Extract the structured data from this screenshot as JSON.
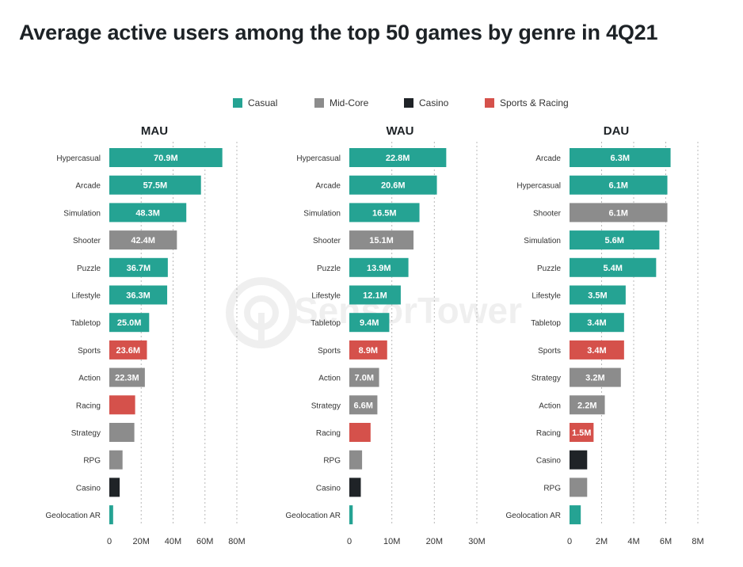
{
  "title": "Average active users among the top 50 games by genre in 4Q21",
  "colors": {
    "Casual": "#25a393",
    "Mid-Core": "#8c8c8c",
    "Casino": "#1f2327",
    "Sports & Racing": "#d5514b"
  },
  "legend": [
    "Casual",
    "Mid-Core",
    "Casino",
    "Sports & Racing"
  ],
  "watermark": "SensorTower",
  "chart_data": [
    {
      "type": "bar",
      "orientation": "horizontal",
      "title": "MAU",
      "xlim": [
        0,
        80
      ],
      "ticks": [
        0,
        20,
        40,
        60,
        80
      ],
      "tick_labels": [
        "0",
        "20M",
        "40M",
        "60M",
        "80M"
      ],
      "grid": true,
      "bars": [
        {
          "category": "Hypercasual",
          "value": 70.9,
          "group": "Casual",
          "label": "70.9M"
        },
        {
          "category": "Arcade",
          "value": 57.5,
          "group": "Casual",
          "label": "57.5M"
        },
        {
          "category": "Simulation",
          "value": 48.3,
          "group": "Casual",
          "label": "48.3M"
        },
        {
          "category": "Shooter",
          "value": 42.4,
          "group": "Mid-Core",
          "label": "42.4M"
        },
        {
          "category": "Puzzle",
          "value": 36.7,
          "group": "Casual",
          "label": "36.7M"
        },
        {
          "category": "Lifestyle",
          "value": 36.3,
          "group": "Casual",
          "label": "36.3M"
        },
        {
          "category": "Tabletop",
          "value": 25.0,
          "group": "Casual",
          "label": "25.0M"
        },
        {
          "category": "Sports",
          "value": 23.6,
          "group": "Sports & Racing",
          "label": "23.6M"
        },
        {
          "category": "Action",
          "value": 22.3,
          "group": "Mid-Core",
          "label": "22.3M"
        },
        {
          "category": "Racing",
          "value": 16.2,
          "group": "Sports & Racing",
          "label": ""
        },
        {
          "category": "Strategy",
          "value": 15.7,
          "group": "Mid-Core",
          "label": ""
        },
        {
          "category": "RPG",
          "value": 8.3,
          "group": "Mid-Core",
          "label": ""
        },
        {
          "category": "Casino",
          "value": 6.5,
          "group": "Casino",
          "label": ""
        },
        {
          "category": "Geolocation AR",
          "value": 2.4,
          "group": "Casual",
          "label": ""
        }
      ]
    },
    {
      "type": "bar",
      "orientation": "horizontal",
      "title": "WAU",
      "xlim": [
        0,
        30
      ],
      "ticks": [
        0,
        10,
        20,
        30
      ],
      "tick_labels": [
        "0",
        "10M",
        "20M",
        "30M"
      ],
      "grid": true,
      "bars": [
        {
          "category": "Hypercasual",
          "value": 22.8,
          "group": "Casual",
          "label": "22.8M"
        },
        {
          "category": "Arcade",
          "value": 20.6,
          "group": "Casual",
          "label": "20.6M"
        },
        {
          "category": "Simulation",
          "value": 16.5,
          "group": "Casual",
          "label": "16.5M"
        },
        {
          "category": "Shooter",
          "value": 15.1,
          "group": "Mid-Core",
          "label": "15.1M"
        },
        {
          "category": "Puzzle",
          "value": 13.9,
          "group": "Casual",
          "label": "13.9M"
        },
        {
          "category": "Lifestyle",
          "value": 12.1,
          "group": "Casual",
          "label": "12.1M"
        },
        {
          "category": "Tabletop",
          "value": 9.4,
          "group": "Casual",
          "label": "9.4M"
        },
        {
          "category": "Sports",
          "value": 8.9,
          "group": "Sports & Racing",
          "label": "8.9M"
        },
        {
          "category": "Action",
          "value": 7.0,
          "group": "Mid-Core",
          "label": "7.0M"
        },
        {
          "category": "Strategy",
          "value": 6.6,
          "group": "Mid-Core",
          "label": "6.6M"
        },
        {
          "category": "Racing",
          "value": 5.0,
          "group": "Sports & Racing",
          "label": ""
        },
        {
          "category": "RPG",
          "value": 3.0,
          "group": "Mid-Core",
          "label": ""
        },
        {
          "category": "Casino",
          "value": 2.7,
          "group": "Casino",
          "label": ""
        },
        {
          "category": "Geolocation AR",
          "value": 0.8,
          "group": "Casual",
          "label": ""
        }
      ]
    },
    {
      "type": "bar",
      "orientation": "horizontal",
      "title": "DAU",
      "xlim": [
        0,
        8
      ],
      "ticks": [
        0,
        2,
        4,
        6,
        8
      ],
      "tick_labels": [
        "0",
        "2M",
        "4M",
        "6M",
        "8M"
      ],
      "grid": true,
      "bars": [
        {
          "category": "Arcade",
          "value": 6.3,
          "group": "Casual",
          "label": "6.3M"
        },
        {
          "category": "Hypercasual",
          "value": 6.1,
          "group": "Casual",
          "label": "6.1M"
        },
        {
          "category": "Shooter",
          "value": 6.1,
          "group": "Mid-Core",
          "label": "6.1M"
        },
        {
          "category": "Simulation",
          "value": 5.6,
          "group": "Casual",
          "label": "5.6M"
        },
        {
          "category": "Puzzle",
          "value": 5.4,
          "group": "Casual",
          "label": "5.4M"
        },
        {
          "category": "Lifestyle",
          "value": 3.5,
          "group": "Casual",
          "label": "3.5M"
        },
        {
          "category": "Tabletop",
          "value": 3.4,
          "group": "Casual",
          "label": "3.4M"
        },
        {
          "category": "Sports",
          "value": 3.4,
          "group": "Sports & Racing",
          "label": "3.4M"
        },
        {
          "category": "Strategy",
          "value": 3.2,
          "group": "Mid-Core",
          "label": "3.2M"
        },
        {
          "category": "Action",
          "value": 2.2,
          "group": "Mid-Core",
          "label": "2.2M"
        },
        {
          "category": "Racing",
          "value": 1.5,
          "group": "Sports & Racing",
          "label": "1.5M"
        },
        {
          "category": "Casino",
          "value": 1.1,
          "group": "Casino",
          "label": ""
        },
        {
          "category": "RPG",
          "value": 1.1,
          "group": "Mid-Core",
          "label": ""
        },
        {
          "category": "Geolocation AR",
          "value": 0.7,
          "group": "Casual",
          "label": ""
        }
      ]
    }
  ]
}
